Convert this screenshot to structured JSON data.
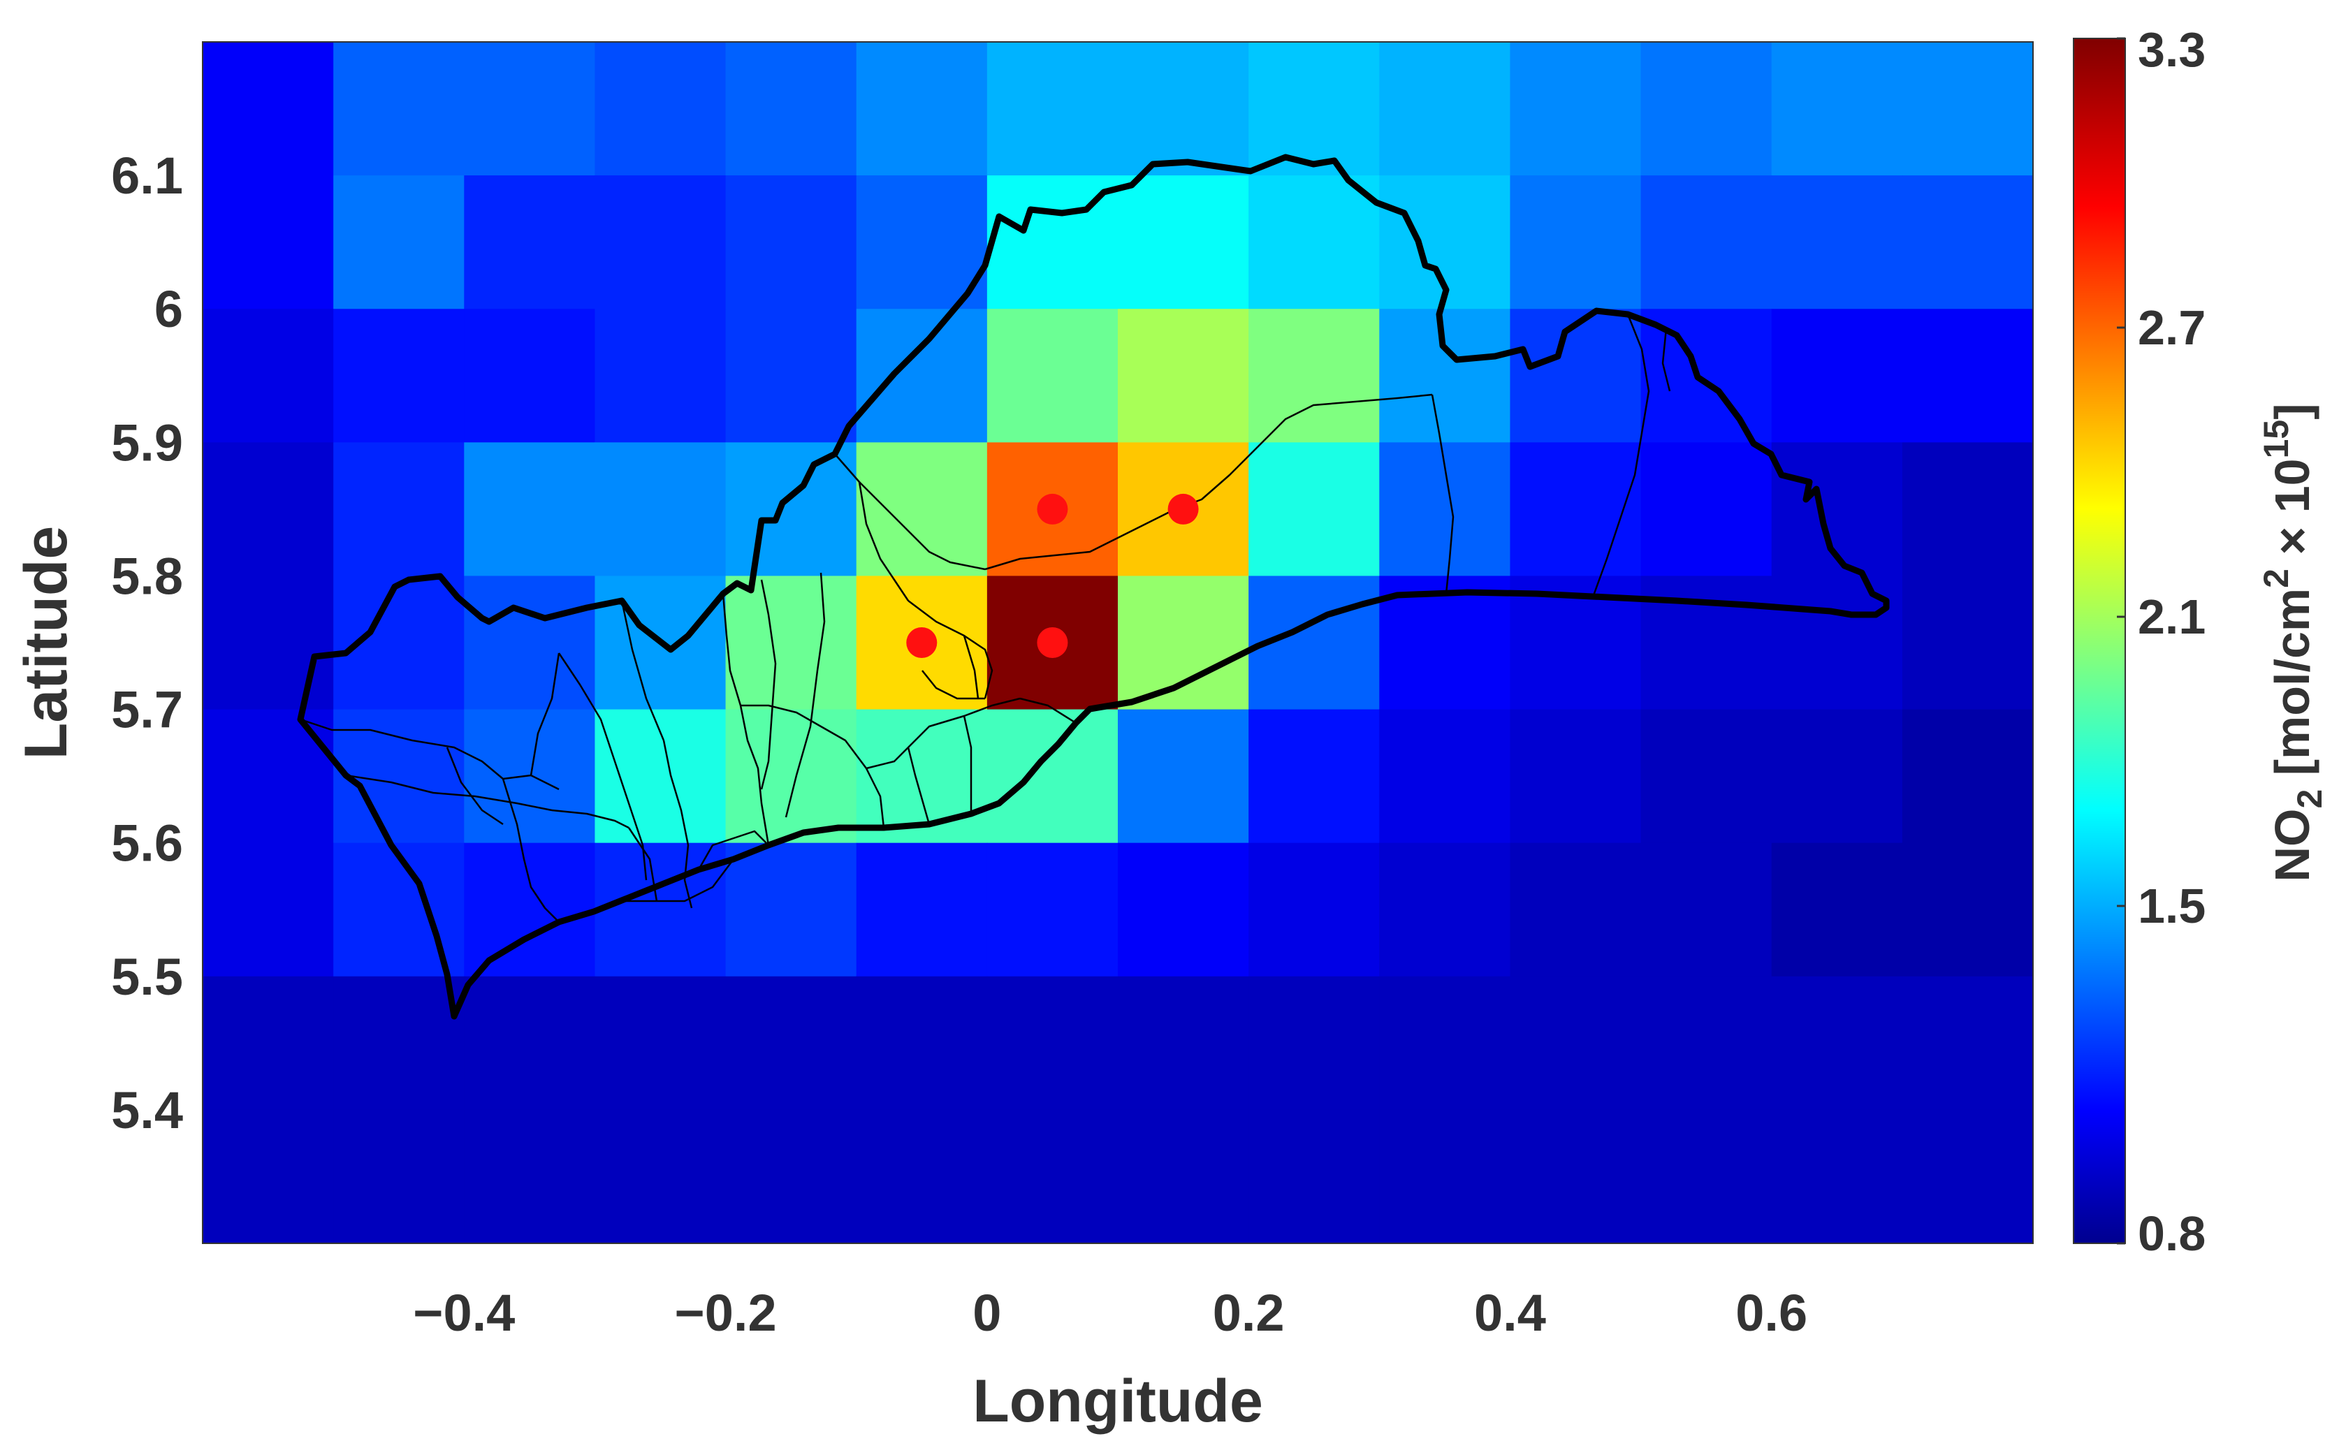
{
  "chart_data": {
    "type": "heatmap",
    "xlabel": "Longitude",
    "ylabel": "Latitude",
    "xlim": [
      -0.6,
      0.8
    ],
    "ylim": [
      5.3,
      6.2
    ],
    "x_ticks": [
      "−0.4",
      "−0.2",
      "0",
      "0.2",
      "0.4",
      "0.6"
    ],
    "x_tick_values": [
      -0.4,
      -0.2,
      0,
      0.2,
      0.4,
      0.6
    ],
    "y_ticks": [
      "6.1",
      "6",
      "5.9",
      "5.8",
      "5.7",
      "5.6",
      "5.5",
      "5.4"
    ],
    "y_tick_values": [
      6.1,
      6.0,
      5.9,
      5.8,
      5.7,
      5.6,
      5.5,
      5.4
    ],
    "cell_width_deg": 0.1,
    "grid_x_edges": [
      -0.6,
      -0.5,
      -0.4,
      -0.3,
      -0.2,
      -0.1,
      0.0,
      0.1,
      0.2,
      0.3,
      0.4,
      0.5,
      0.6,
      0.7,
      0.8
    ],
    "grid_y_edges": [
      6.2,
      6.1,
      6.0,
      5.9,
      5.8,
      5.7,
      5.6,
      5.5,
      5.4,
      5.3
    ],
    "values": [
      [
        1.1,
        1.35,
        1.35,
        1.3,
        1.35,
        1.45,
        1.55,
        1.55,
        1.6,
        1.55,
        1.45,
        1.4,
        1.45,
        1.45
      ],
      [
        1.1,
        1.4,
        1.2,
        1.2,
        1.25,
        1.35,
        1.75,
        1.75,
        1.65,
        1.6,
        1.4,
        1.3,
        1.3,
        1.3
      ],
      [
        1.05,
        1.15,
        1.15,
        1.2,
        1.25,
        1.45,
        2.0,
        2.15,
        2.05,
        1.5,
        1.25,
        1.15,
        1.1,
        1.1
      ],
      [
        1.0,
        1.2,
        1.45,
        1.45,
        1.5,
        2.05,
        2.75,
        2.5,
        1.8,
        1.35,
        1.15,
        1.1,
        1.0,
        0.95
      ],
      [
        1.0,
        1.2,
        1.3,
        1.5,
        2.0,
        2.45,
        3.3,
        2.1,
        1.35,
        1.1,
        1.05,
        1.0,
        1.0,
        0.95
      ],
      [
        1.05,
        1.25,
        1.35,
        1.8,
        1.95,
        1.9,
        1.9,
        1.4,
        1.15,
        1.05,
        1.0,
        0.95,
        0.95,
        0.9
      ],
      [
        1.05,
        1.2,
        1.15,
        1.2,
        1.25,
        1.15,
        1.15,
        1.1,
        1.05,
        1.0,
        0.95,
        0.95,
        0.9,
        0.9
      ],
      [
        0.95,
        0.95,
        0.95,
        0.95,
        0.95,
        0.95,
        0.95,
        0.95,
        0.95,
        0.95,
        0.95,
        0.95,
        0.95,
        0.95
      ],
      [
        0.95,
        0.95,
        0.95,
        0.95,
        0.95,
        0.95,
        0.95,
        0.95,
        0.95,
        0.95,
        0.95,
        0.95,
        0.95,
        0.95
      ]
    ],
    "colorbar": {
      "title_parts": [
        "NO",
        "2",
        " [mol/cm",
        "2",
        " × 10",
        "15",
        "]"
      ],
      "min": 0.8,
      "max": 3.3,
      "ticks": [
        "3.3",
        "2.7",
        "2.1",
        "1.5",
        "0.8"
      ],
      "tick_values": [
        3.3,
        2.7,
        2.1,
        1.5,
        0.8
      ],
      "colormap": "jet"
    },
    "stations": [
      {
        "lon": -0.05,
        "lat": 5.75
      },
      {
        "lon": 0.05,
        "lat": 5.75
      },
      {
        "lon": 0.05,
        "lat": 5.85
      },
      {
        "lon": 0.15,
        "lat": 5.85
      }
    ],
    "station_color": "#ff1010",
    "outline_color": "#000000",
    "grid": false
  }
}
